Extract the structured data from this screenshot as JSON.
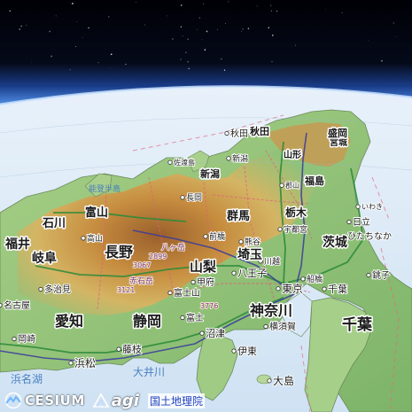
{
  "map": {
    "prefectures": [
      {
        "id": "chiba",
        "label": "千葉"
      },
      {
        "id": "kanagawa",
        "label": "神奈川"
      },
      {
        "id": "shizuoka",
        "label": "静岡"
      },
      {
        "id": "aichi",
        "label": "愛知"
      },
      {
        "id": "yamanashi",
        "label": "山梨"
      },
      {
        "id": "nagano",
        "label": "長野"
      },
      {
        "id": "gifu",
        "label": "岐阜"
      },
      {
        "id": "fukui",
        "label": "福井"
      },
      {
        "id": "ishikawa",
        "label": "石川"
      },
      {
        "id": "toyama",
        "label": "富山"
      },
      {
        "id": "gunma",
        "label": "群馬"
      },
      {
        "id": "saitama",
        "label": "埼玉"
      },
      {
        "id": "ibaraki",
        "label": "茨城"
      },
      {
        "id": "tochigi",
        "label": "栃木"
      },
      {
        "id": "fukushima",
        "label": "福島"
      },
      {
        "id": "niigata",
        "label": "新潟"
      },
      {
        "id": "yamagata",
        "label": "山形"
      },
      {
        "id": "miyagi",
        "label": "宮城"
      },
      {
        "id": "akita",
        "label": "秋田"
      },
      {
        "id": "iwate",
        "label": "盛岡"
      }
    ],
    "cities": [
      {
        "id": "yokosuka",
        "label": "横須賀"
      },
      {
        "id": "ito",
        "label": "伊東"
      },
      {
        "id": "oshima",
        "label": "大島"
      },
      {
        "id": "hamamatsu",
        "label": "浜松"
      },
      {
        "id": "fujieda",
        "label": "藤枝"
      },
      {
        "id": "numazu",
        "label": "沼津"
      },
      {
        "id": "fuji",
        "label": "富士"
      },
      {
        "id": "fujisan",
        "label": "富士山"
      },
      {
        "id": "kofu",
        "label": "甲府"
      },
      {
        "id": "hachioji",
        "label": "八王子"
      },
      {
        "id": "tokyo",
        "label": "東京"
      },
      {
        "id": "chiba-city",
        "label": "千葉"
      },
      {
        "id": "choshi",
        "label": "銚子"
      },
      {
        "id": "hitachi",
        "label": "日立"
      },
      {
        "id": "hitachinaka",
        "label": "ひたちなか"
      },
      {
        "id": "iwaki",
        "label": "いわき"
      },
      {
        "id": "akita-city",
        "label": "秋田"
      },
      {
        "id": "nagoya",
        "label": "名古屋"
      },
      {
        "id": "okazaki",
        "label": "岡崎"
      },
      {
        "id": "tajimi",
        "label": "多治見"
      },
      {
        "id": "kawagoe",
        "label": "川越"
      },
      {
        "id": "kumagaya",
        "label": "熊谷"
      },
      {
        "id": "maebashi",
        "label": "前橋"
      },
      {
        "id": "utsunomiya",
        "label": "宇都宮"
      },
      {
        "id": "koriyama",
        "label": "郡山"
      },
      {
        "id": "niigata-city",
        "label": "新潟"
      },
      {
        "id": "nagaoka",
        "label": "長岡"
      },
      {
        "id": "sado",
        "label": "佐渡島"
      },
      {
        "id": "takayama",
        "label": "高山"
      },
      {
        "id": "funabashi",
        "label": "船橋"
      }
    ],
    "mountains": [
      {
        "id": "akaishi",
        "label": "赤石岳"
      },
      {
        "id": "yatsugatake",
        "label": "八ヶ岳"
      },
      {
        "id": "elev-3121",
        "label": "3121"
      },
      {
        "id": "elev-3776",
        "label": "3776"
      },
      {
        "id": "elev-2899",
        "label": "2899"
      },
      {
        "id": "elev-3067",
        "label": "3067"
      }
    ],
    "sea_labels": [
      {
        "id": "hamanako",
        "label": "浜名湖"
      },
      {
        "id": "oigawa",
        "label": "大井川"
      },
      {
        "id": "miyako-noto",
        "label": "能登半島"
      }
    ]
  },
  "credits": {
    "cesium": "CESIUM",
    "agi": "agi",
    "gsi": "国土地理院"
  },
  "colors": {
    "space": "#000000",
    "atmosphere": "#6aa8ff",
    "ocean": "#d8e8f6",
    "lowland": "#8fc27a",
    "highland": "#c98a3c",
    "peak": "#9a5a28",
    "road": "#2a8a3a",
    "rail": "#3b3b9b",
    "boundary": "#e0607a"
  }
}
